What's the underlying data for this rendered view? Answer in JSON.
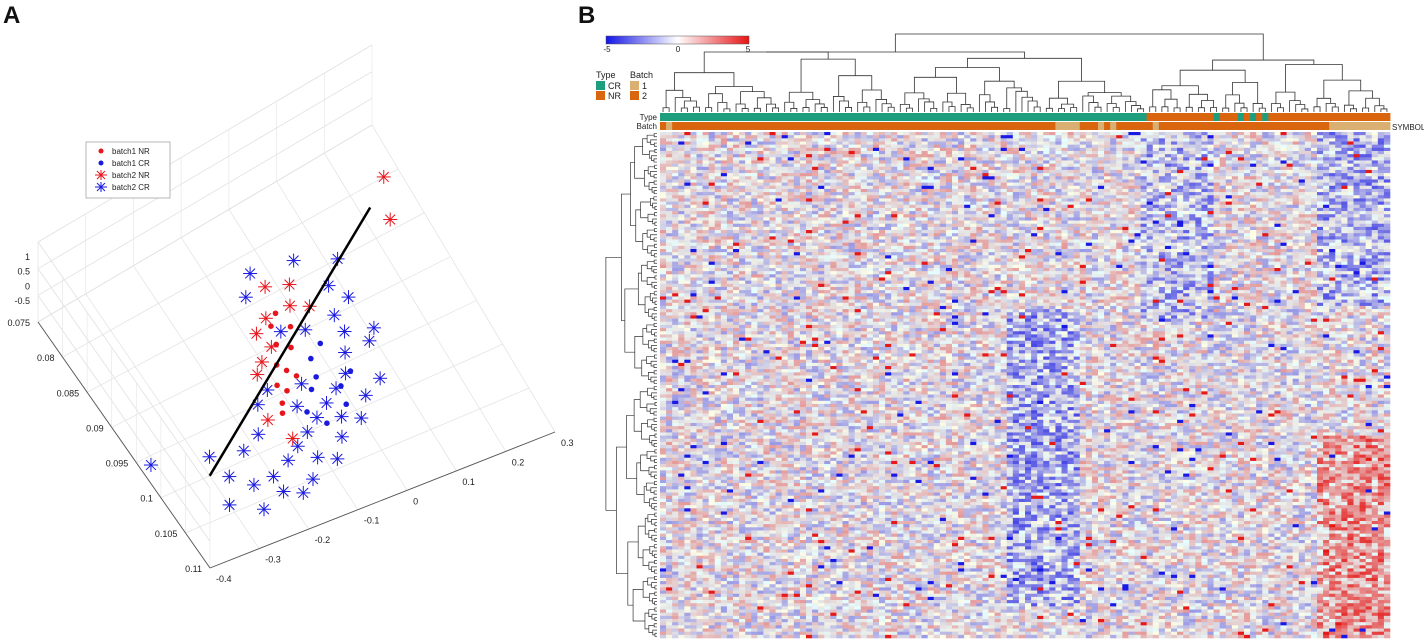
{
  "panels": {
    "a_label": "A",
    "b_label": "B"
  },
  "chart_data": [
    {
      "type": "scatter",
      "panel": "A",
      "title": "",
      "legend": {
        "placement": "top-left",
        "entries": [
          "batch1 NR",
          "batch1 CR",
          "batch2 NR",
          "batch2 CR"
        ]
      },
      "axes": {
        "x_ticks": [
          "-0.4",
          "-0.3",
          "-0.2",
          "-0.1",
          "0",
          "0.1",
          "0.2",
          "0.3"
        ],
        "y_ticks": [
          "0.075",
          "0.08",
          "0.085",
          "0.09",
          "0.095",
          "0.1",
          "0.105",
          "0.11"
        ],
        "z_ticks": [
          "1",
          "0.5",
          "0",
          "-0.5"
        ],
        "xlim": [
          -0.4,
          0.3
        ],
        "ylim": [
          0.075,
          0.11
        ],
        "zlim": [
          -0.5,
          1
        ]
      },
      "series": [
        {
          "name": "batch1 NR",
          "color": "#e8141b",
          "marker": "dot",
          "points": [
            [
              -0.05,
              0.088
            ],
            [
              -0.03,
              0.087
            ],
            [
              -0.08,
              0.092
            ],
            [
              -0.06,
              0.09
            ],
            [
              -0.02,
              0.089
            ],
            [
              -0.1,
              0.094
            ],
            [
              -0.07,
              0.093
            ],
            [
              -0.09,
              0.095
            ],
            [
              -0.04,
              0.091
            ],
            [
              -0.11,
              0.096
            ],
            [
              -0.12,
              0.097
            ],
            [
              -0.06,
              0.094
            ]
          ]
        },
        {
          "name": "batch1 CR",
          "color": "#1a1adf",
          "marker": "dot",
          "points": [
            [
              -0.02,
              0.093
            ],
            [
              0.01,
              0.092
            ],
            [
              -0.05,
              0.096
            ],
            [
              -0.03,
              0.095
            ],
            [
              0.0,
              0.097
            ],
            [
              -0.08,
              0.098
            ],
            [
              0.03,
              0.096
            ],
            [
              -0.01,
              0.099
            ],
            [
              -0.06,
              0.1
            ]
          ]
        },
        {
          "name": "batch2 NR",
          "color": "#e8141b",
          "marker": "star",
          "points": [
            [
              0.27,
              0.08
            ],
            [
              0.24,
              0.084
            ],
            [
              -0.02,
              0.084
            ],
            [
              0.02,
              0.085
            ],
            [
              -0.08,
              0.088
            ],
            [
              -0.05,
              0.087
            ],
            [
              0.0,
              0.087
            ],
            [
              -0.12,
              0.092
            ],
            [
              -0.1,
              0.091
            ],
            [
              -0.15,
              0.097
            ],
            [
              -0.07,
              0.09
            ],
            [
              0.03,
              0.088
            ],
            [
              -0.13,
              0.1
            ]
          ]
        },
        {
          "name": "batch2 CR",
          "color": "#1a1adf",
          "marker": "star",
          "points": [
            [
              -0.38,
              0.096
            ],
            [
              -0.3,
              0.104
            ],
            [
              0.12,
              0.085
            ],
            [
              0.05,
              0.083
            ],
            [
              -0.03,
              0.082
            ],
            [
              -0.06,
              0.084
            ],
            [
              0.08,
              0.087
            ],
            [
              0.1,
              0.089
            ],
            [
              0.06,
              0.092
            ],
            [
              0.04,
              0.094
            ],
            [
              0.02,
              0.096
            ],
            [
              -0.01,
              0.097
            ],
            [
              -0.04,
              0.098
            ],
            [
              -0.07,
              0.099
            ],
            [
              -0.1,
              0.1
            ],
            [
              -0.13,
              0.101
            ],
            [
              -0.16,
              0.102
            ],
            [
              -0.2,
              0.103
            ],
            [
              -0.24,
              0.103
            ],
            [
              -0.27,
              0.101
            ],
            [
              -0.22,
              0.099
            ],
            [
              -0.18,
              0.098
            ],
            [
              -0.15,
              0.095
            ],
            [
              -0.12,
              0.094
            ],
            [
              -0.09,
              0.097
            ],
            [
              -0.06,
              0.095
            ],
            [
              -0.03,
              0.1
            ],
            [
              0.0,
              0.101
            ],
            [
              0.03,
              0.099
            ],
            [
              0.07,
              0.098
            ],
            [
              -0.2,
              0.105
            ],
            [
              -0.25,
              0.106
            ],
            [
              -0.11,
              0.103
            ],
            [
              -0.08,
              0.104
            ],
            [
              -0.05,
              0.102
            ],
            [
              0.09,
              0.094
            ],
            [
              0.11,
              0.093
            ],
            [
              -0.17,
              0.106
            ],
            [
              -0.14,
              0.105
            ],
            [
              -0.28,
              0.098
            ],
            [
              0.0,
              0.09
            ],
            [
              -0.04,
              0.089
            ],
            [
              0.06,
              0.09
            ]
          ]
        }
      ],
      "decision_line": {
        "from": [
          -0.3,
          0.1
        ],
        "to": [
          0.22,
          0.082
        ]
      }
    },
    {
      "type": "heatmap",
      "panel": "B",
      "title": "",
      "colorbar": {
        "min": -5,
        "mid": 0,
        "max": 5,
        "tick_labels": [
          "-5",
          "0",
          "5"
        ],
        "colors": [
          "#1414e6",
          "#ffffff",
          "#e61414"
        ]
      },
      "legend": {
        "type_title": "Type",
        "type_entries": [
          {
            "label": "CR",
            "color": "#1f9e7e"
          },
          {
            "label": "NR",
            "color": "#d9650f"
          }
        ],
        "batch_title": "Batch",
        "batch_entries": [
          {
            "label": "1",
            "color": "#d9b071"
          },
          {
            "label": "2",
            "color": "#d9650f"
          }
        ]
      },
      "row_annotations": [
        "Type",
        "Batch"
      ],
      "row_label_right": "SYMBOL",
      "n_columns": 120,
      "n_rows": 160,
      "column_type": "CCCCCCCCCCCCCCCCCCCCCCCCCCCCCCCCCCCCCCCCCCCCCCCCCCCCCCCCCCCCCCCCCCCCCCCCCCCCCCCCNNNNNNNNNNNCNNNCNCNCNNNNNNNNNNNNNNNNNNNNNNNNN",
      "column_batch": "2122222222222222222222222222222222222222222222222222222222222222211112221212222221222222222222222222222222222211111111111"
    }
  ]
}
